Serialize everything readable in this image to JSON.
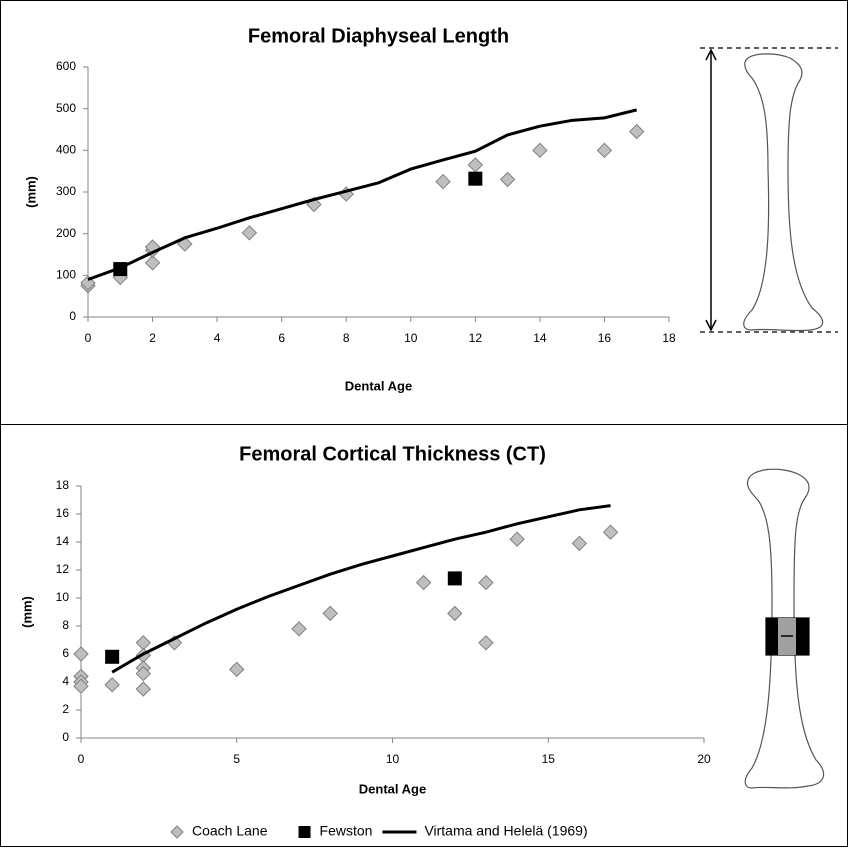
{
  "chart_data": [
    {
      "type": "scatter",
      "title": "Femoral Diaphyseal Length",
      "x_label": "Dental Age",
      "y_label": "(mm)",
      "xlim": [
        0,
        18
      ],
      "xticks": [
        0,
        2,
        4,
        6,
        8,
        10,
        12,
        14,
        16,
        18
      ],
      "ylim": [
        0,
        600
      ],
      "yticks": [
        0,
        100,
        200,
        300,
        400,
        500,
        600
      ],
      "grid": false,
      "series": [
        {
          "name": "Coach Lane",
          "color": "#bfbfbf",
          "marker": "diamond",
          "x": [
            0,
            0,
            1,
            2,
            2,
            2,
            3,
            5,
            7,
            8,
            11,
            12,
            13,
            14,
            16,
            17
          ],
          "values": [
            75,
            82,
            95,
            130,
            160,
            168,
            175,
            202,
            270,
            295,
            325,
            365,
            330,
            400,
            400,
            445
          ]
        },
        {
          "name": "Fewston",
          "color": "#000000",
          "marker": "square",
          "x": [
            1,
            12
          ],
          "values": [
            115,
            332
          ]
        },
        {
          "name": "Virtama and Helelä (1969)",
          "color": "#000000",
          "marker": "line",
          "x": [
            0,
            1,
            2,
            3,
            4,
            5,
            6,
            7,
            8,
            9,
            10,
            11,
            12,
            13,
            14,
            15,
            16,
            17
          ],
          "values": [
            90,
            118,
            155,
            190,
            213,
            238,
            260,
            282,
            302,
            322,
            355,
            377,
            398,
            437,
            458,
            472,
            478,
            497
          ]
        }
      ]
    },
    {
      "type": "scatter",
      "title": "Femoral Cortical Thickness (CT)",
      "x_label": "Dental Age",
      "y_label": "(mm)",
      "xlim": [
        0,
        20
      ],
      "xticks": [
        0,
        5,
        10,
        15,
        20
      ],
      "ylim": [
        0,
        18
      ],
      "yticks": [
        0,
        2,
        4,
        6,
        8,
        10,
        12,
        14,
        16,
        18
      ],
      "grid": false,
      "legend": "bottom",
      "series": [
        {
          "name": "Coach Lane",
          "color": "#bfbfbf",
          "marker": "diamond",
          "x": [
            0,
            0,
            0,
            0,
            1,
            2,
            2,
            2,
            2,
            2,
            3,
            5,
            7,
            8,
            11,
            12,
            13,
            13,
            14,
            16,
            17
          ],
          "values": [
            6.0,
            4.4,
            4.0,
            3.7,
            3.8,
            6.8,
            5.9,
            5.0,
            4.6,
            3.5,
            6.8,
            4.9,
            7.8,
            8.9,
            11.1,
            8.9,
            11.1,
            6.8,
            14.2,
            13.9,
            14.7
          ]
        },
        {
          "name": "Fewston",
          "color": "#000000",
          "marker": "square",
          "x": [
            1,
            12
          ],
          "values": [
            5.8,
            11.4
          ]
        },
        {
          "name": "Virtama and Helelä (1969)",
          "color": "#000000",
          "marker": "line",
          "x": [
            1,
            2,
            3,
            4,
            5,
            6,
            7,
            8,
            9,
            10,
            11,
            12,
            13,
            14,
            15,
            16,
            17
          ],
          "values": [
            4.7,
            6.0,
            7.1,
            8.2,
            9.2,
            10.1,
            10.9,
            11.7,
            12.4,
            13.0,
            13.6,
            14.2,
            14.7,
            15.3,
            15.8,
            16.3,
            16.6
          ]
        }
      ]
    }
  ]
}
